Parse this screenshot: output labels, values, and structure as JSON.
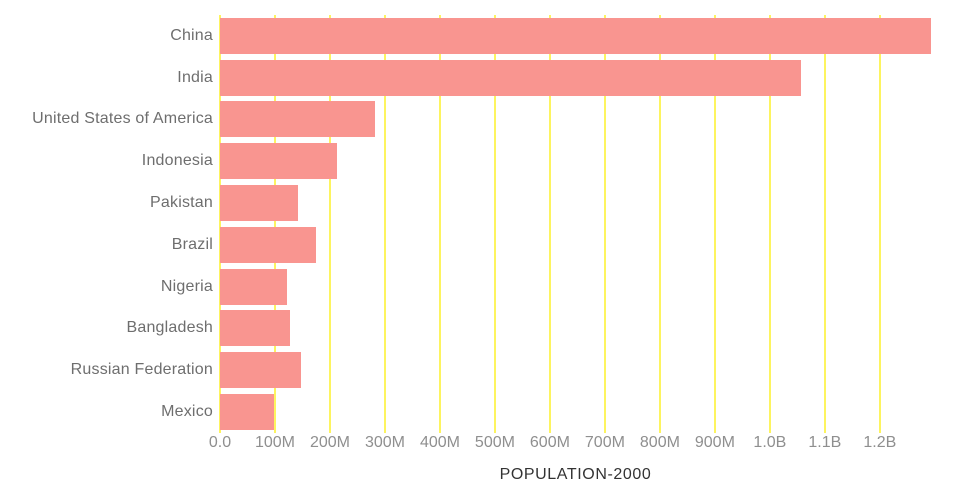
{
  "chart_data": {
    "type": "bar",
    "orientation": "horizontal",
    "title": "POPULATION-2000",
    "categories": [
      "China",
      "India",
      "United States of America",
      "Indonesia",
      "Pakistan",
      "Brazil",
      "Nigeria",
      "Bangladesh",
      "Russian Federation",
      "Mexico"
    ],
    "values_millions": [
      1293,
      1057,
      282,
      212,
      142,
      175,
      122,
      128,
      147,
      98
    ],
    "x_ticks": [
      {
        "label": "0.0",
        "value_millions": 0
      },
      {
        "label": "100M",
        "value_millions": 100
      },
      {
        "label": "200M",
        "value_millions": 200
      },
      {
        "label": "300M",
        "value_millions": 300
      },
      {
        "label": "400M",
        "value_millions": 400
      },
      {
        "label": "500M",
        "value_millions": 500
      },
      {
        "label": "600M",
        "value_millions": 600
      },
      {
        "label": "700M",
        "value_millions": 700
      },
      {
        "label": "800M",
        "value_millions": 800
      },
      {
        "label": "900M",
        "value_millions": 900
      },
      {
        "label": "1.0B",
        "value_millions": 1000
      },
      {
        "label": "1.1B",
        "value_millions": 1100
      },
      {
        "label": "1.2B",
        "value_millions": 1200
      }
    ],
    "xlim_millions": [
      0,
      1293
    ],
    "grid": "vertical",
    "legend": "none",
    "colors": {
      "bar": "#F99590",
      "gridline": "#FDF45F",
      "category_label": "#6E6E6E",
      "tick_label": "#8F8F8F",
      "title": "#333333",
      "background": "#FFFFFF"
    }
  }
}
